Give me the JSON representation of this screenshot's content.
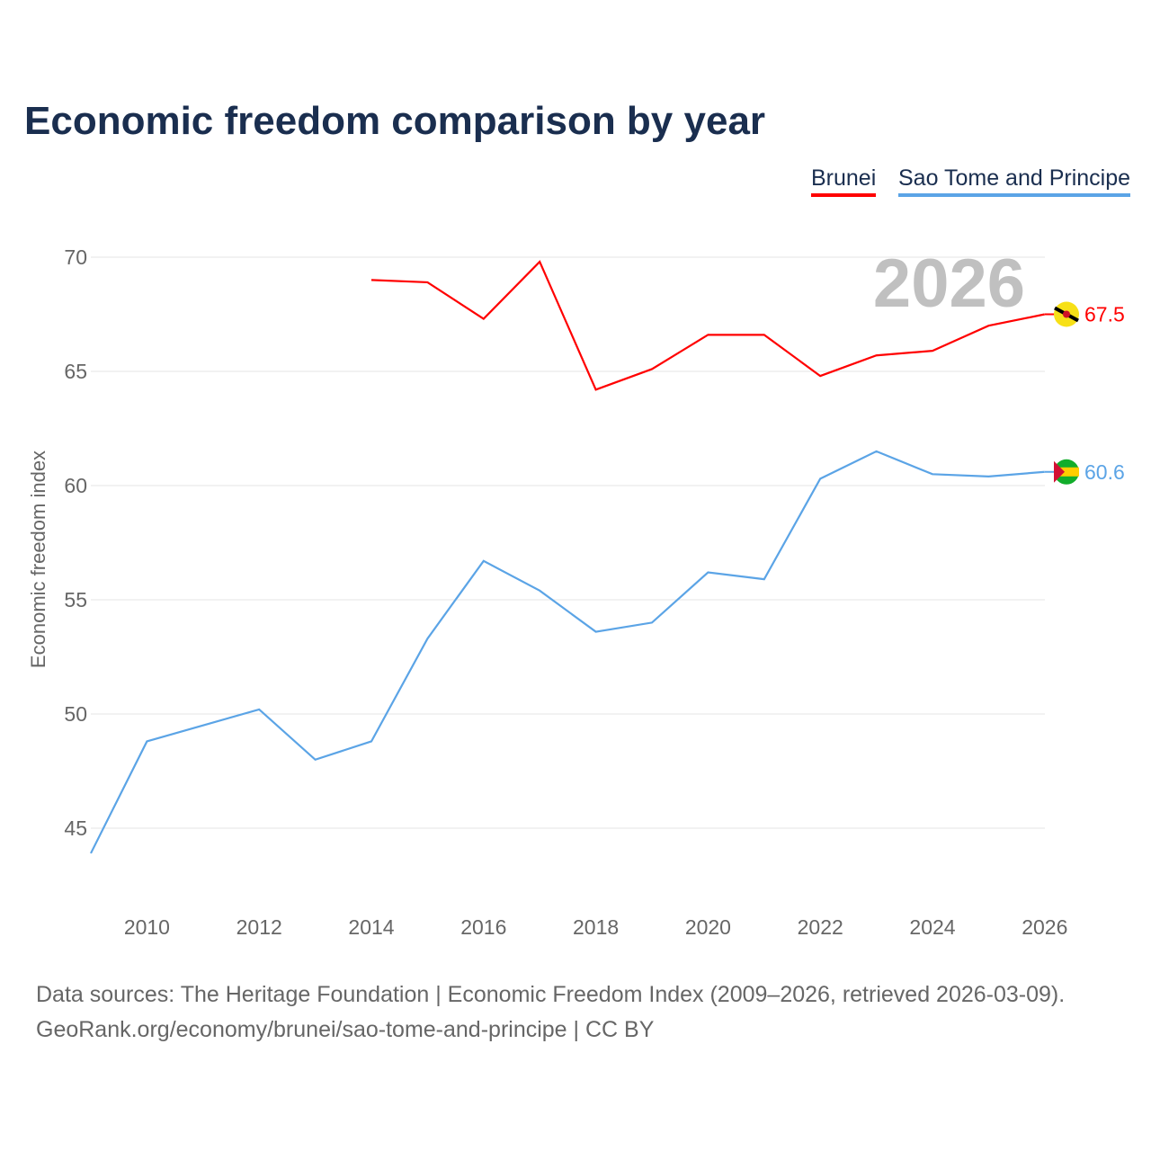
{
  "chart_data": {
    "type": "line",
    "title": "Economic freedom comparison by year",
    "xlabel": "",
    "ylabel": "Economic freedom index",
    "xlim": [
      2009,
      2026
    ],
    "ylim": [
      42,
      72
    ],
    "yticks": [
      45,
      50,
      55,
      60,
      65,
      70
    ],
    "xticks": [
      2010,
      2012,
      2014,
      2016,
      2018,
      2020,
      2022,
      2024,
      2026
    ],
    "grid": true,
    "legend_position": "top-right",
    "year_watermark": "2026",
    "series": [
      {
        "name": "Brunei",
        "color": "#ff0000",
        "end_label": "67.5",
        "x": [
          2014,
          2015,
          2016,
          2017,
          2018,
          2019,
          2020,
          2021,
          2022,
          2023,
          2024,
          2025,
          2026
        ],
        "values": [
          69.0,
          68.9,
          67.3,
          69.8,
          64.2,
          65.1,
          66.6,
          66.6,
          64.8,
          65.7,
          65.9,
          67.0,
          67.5
        ]
      },
      {
        "name": "Sao Tome and Principe",
        "color": "#5ba4e6",
        "end_label": "60.6",
        "x": [
          2009,
          2010,
          2011,
          2012,
          2013,
          2014,
          2015,
          2016,
          2017,
          2018,
          2019,
          2020,
          2021,
          2022,
          2023,
          2024,
          2025,
          2026
        ],
        "values": [
          43.9,
          48.8,
          49.5,
          50.2,
          48.0,
          48.8,
          53.3,
          56.7,
          55.4,
          53.6,
          54.0,
          56.2,
          55.9,
          60.3,
          61.5,
          60.5,
          60.4,
          60.6
        ]
      }
    ]
  },
  "footer": {
    "line1": "Data sources: The Heritage Foundation | Economic Freedom Index (2009–2026, retrieved 2026-03-09).",
    "line2": "GeoRank.org/economy/brunei/sao-tome-and-principe | CC BY"
  }
}
